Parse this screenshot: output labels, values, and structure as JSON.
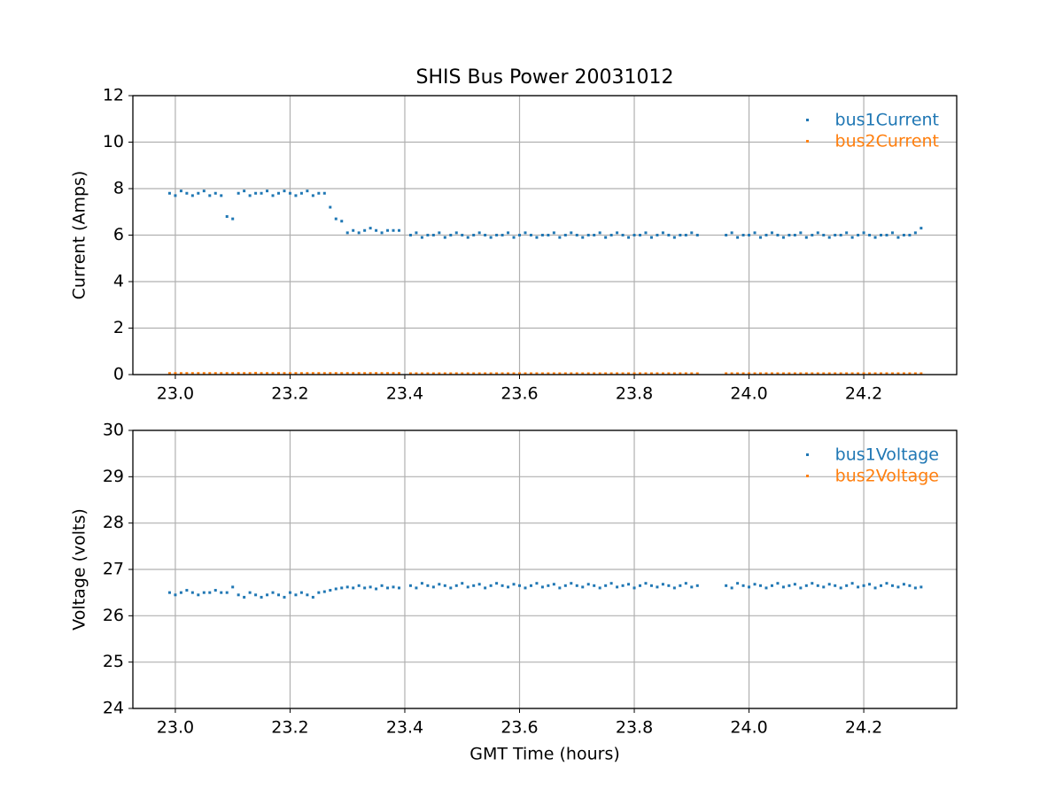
{
  "chart_data": [
    {
      "type": "scatter",
      "title": "SHIS Bus Power 20031012",
      "y_label": "Current (Amps)",
      "x": [
        22.99,
        23.0,
        23.01,
        23.02,
        23.03,
        23.04,
        23.05,
        23.06,
        23.07,
        23.08,
        23.09,
        23.1,
        23.11,
        23.12,
        23.13,
        23.14,
        23.15,
        23.16,
        23.17,
        23.18,
        23.19,
        23.2,
        23.21,
        23.22,
        23.23,
        23.24,
        23.25,
        23.26,
        23.27,
        23.28,
        23.29,
        23.3,
        23.31,
        23.32,
        23.33,
        23.34,
        23.35,
        23.36,
        23.37,
        23.38,
        23.39,
        23.41,
        23.42,
        23.43,
        23.44,
        23.45,
        23.46,
        23.47,
        23.48,
        23.49,
        23.5,
        23.51,
        23.52,
        23.53,
        23.54,
        23.55,
        23.56,
        23.57,
        23.58,
        23.59,
        23.6,
        23.61,
        23.62,
        23.63,
        23.64,
        23.65,
        23.66,
        23.67,
        23.68,
        23.69,
        23.7,
        23.71,
        23.72,
        23.73,
        23.74,
        23.75,
        23.76,
        23.77,
        23.78,
        23.79,
        23.8,
        23.81,
        23.82,
        23.83,
        23.84,
        23.85,
        23.86,
        23.87,
        23.88,
        23.89,
        23.9,
        23.91,
        23.96,
        23.97,
        23.98,
        23.99,
        24.0,
        24.01,
        24.02,
        24.03,
        24.04,
        24.05,
        24.06,
        24.07,
        24.08,
        24.09,
        24.1,
        24.11,
        24.12,
        24.13,
        24.14,
        24.15,
        24.16,
        24.17,
        24.18,
        24.19,
        24.2,
        24.21,
        24.22,
        24.23,
        24.24,
        24.25,
        24.26,
        24.27,
        24.28,
        24.29,
        24.3
      ],
      "series": [
        {
          "name": "bus1Current",
          "color": "#1f77b4",
          "values": [
            7.8,
            7.7,
            7.9,
            7.8,
            7.7,
            7.8,
            7.9,
            7.7,
            7.8,
            7.7,
            6.8,
            6.7,
            7.8,
            7.9,
            7.7,
            7.8,
            7.8,
            7.9,
            7.7,
            7.8,
            7.9,
            7.8,
            7.7,
            7.8,
            7.9,
            7.7,
            7.8,
            7.8,
            7.2,
            6.7,
            6.6,
            6.1,
            6.2,
            6.1,
            6.2,
            6.3,
            6.2,
            6.1,
            6.2,
            6.2,
            6.2,
            6.0,
            6.1,
            5.9,
            6.0,
            6.0,
            6.1,
            5.9,
            6.0,
            6.1,
            6.0,
            5.9,
            6.0,
            6.1,
            6.0,
            5.9,
            6.0,
            6.0,
            6.1,
            5.9,
            6.0,
            6.1,
            6.0,
            5.9,
            6.0,
            6.0,
            6.1,
            5.9,
            6.0,
            6.1,
            6.0,
            5.9,
            6.0,
            6.0,
            6.1,
            5.9,
            6.0,
            6.1,
            6.0,
            5.9,
            6.0,
            6.0,
            6.1,
            5.9,
            6.0,
            6.1,
            6.0,
            5.9,
            6.0,
            6.0,
            6.1,
            6.0,
            6.0,
            6.1,
            5.9,
            6.0,
            6.0,
            6.1,
            5.9,
            6.0,
            6.1,
            6.0,
            5.9,
            6.0,
            6.0,
            6.1,
            5.9,
            6.0,
            6.1,
            6.0,
            5.9,
            6.0,
            6.0,
            6.1,
            5.9,
            6.0,
            6.1,
            6.0,
            5.9,
            6.0,
            6.0,
            6.1,
            5.9,
            6.0,
            6.0,
            6.1,
            6.3
          ]
        },
        {
          "name": "bus2Current",
          "color": "#ff7f0e",
          "values": [
            0.05,
            0.05,
            0.05,
            0.05,
            0.05,
            0.05,
            0.05,
            0.05,
            0.05,
            0.05,
            0.05,
            0.05,
            0.05,
            0.05,
            0.05,
            0.06,
            0.05,
            0.05,
            0.05,
            0.05,
            0.05,
            0.05,
            0.05,
            0.05,
            0.05,
            0.05,
            0.05,
            0.05,
            0.05,
            0.05,
            0.05,
            0.05,
            0.05,
            0.05,
            0.05,
            0.05,
            0.05,
            0.05,
            0.05,
            0.05,
            0.05,
            0.04,
            0.04,
            0.04,
            0.04,
            0.04,
            0.04,
            0.04,
            0.04,
            0.04,
            0.04,
            0.04,
            0.04,
            0.04,
            0.04,
            0.04,
            0.04,
            0.04,
            0.04,
            0.04,
            0.04,
            0.04,
            0.04,
            0.04,
            0.04,
            0.04,
            0.04,
            0.04,
            0.04,
            0.04,
            0.04,
            0.04,
            0.04,
            0.04,
            0.04,
            0.04,
            0.04,
            0.04,
            0.04,
            0.04,
            0.04,
            0.04,
            0.04,
            0.04,
            0.04,
            0.04,
            0.04,
            0.04,
            0.04,
            0.04,
            0.04,
            0.04,
            0.04,
            0.04,
            0.04,
            0.04,
            0.04,
            0.04,
            0.04,
            0.04,
            0.04,
            0.04,
            0.04,
            0.04,
            0.04,
            0.04,
            0.04,
            0.04,
            0.04,
            0.04,
            0.04,
            0.04,
            0.04,
            0.04,
            0.04,
            0.04,
            0.04,
            0.04,
            0.04,
            0.04,
            0.04,
            0.04,
            0.04,
            0.04,
            0.04,
            0.04,
            0.04
          ]
        }
      ],
      "xlim": [
        22.926,
        24.362
      ],
      "xticks": [
        {
          "value": 23,
          "label": "23.0"
        },
        23.2,
        23.4,
        23.6,
        23.8,
        {
          "value": 24,
          "label": "24.0"
        },
        24.2
      ],
      "ylim": [
        0,
        12
      ],
      "yticks": [
        0,
        2,
        4,
        6,
        8,
        10,
        12
      ],
      "grid": true,
      "legend": "upper right"
    },
    {
      "type": "scatter",
      "x_label": "GMT Time (hours)",
      "y_label": "Voltage (volts)",
      "x": [
        22.99,
        23.0,
        23.01,
        23.02,
        23.03,
        23.04,
        23.05,
        23.06,
        23.07,
        23.08,
        23.09,
        23.1,
        23.11,
        23.12,
        23.13,
        23.14,
        23.15,
        23.16,
        23.17,
        23.18,
        23.19,
        23.2,
        23.21,
        23.22,
        23.23,
        23.24,
        23.25,
        23.26,
        23.27,
        23.28,
        23.29,
        23.3,
        23.31,
        23.32,
        23.33,
        23.34,
        23.35,
        23.36,
        23.37,
        23.38,
        23.39,
        23.41,
        23.42,
        23.43,
        23.44,
        23.45,
        23.46,
        23.47,
        23.48,
        23.49,
        23.5,
        23.51,
        23.52,
        23.53,
        23.54,
        23.55,
        23.56,
        23.57,
        23.58,
        23.59,
        23.6,
        23.61,
        23.62,
        23.63,
        23.64,
        23.65,
        23.66,
        23.67,
        23.68,
        23.69,
        23.7,
        23.71,
        23.72,
        23.73,
        23.74,
        23.75,
        23.76,
        23.77,
        23.78,
        23.79,
        23.8,
        23.81,
        23.82,
        23.83,
        23.84,
        23.85,
        23.86,
        23.87,
        23.88,
        23.89,
        23.9,
        23.91,
        23.96,
        23.97,
        23.98,
        23.99,
        24.0,
        24.01,
        24.02,
        24.03,
        24.04,
        24.05,
        24.06,
        24.07,
        24.08,
        24.09,
        24.1,
        24.11,
        24.12,
        24.13,
        24.14,
        24.15,
        24.16,
        24.17,
        24.18,
        24.19,
        24.2,
        24.21,
        24.22,
        24.23,
        24.24,
        24.25,
        24.26,
        24.27,
        24.28,
        24.29,
        24.3
      ],
      "series": [
        {
          "name": "bus1Voltage",
          "color": "#1f77b4",
          "values": [
            26.5,
            26.45,
            26.5,
            26.55,
            26.5,
            26.45,
            26.5,
            26.5,
            26.55,
            26.5,
            26.5,
            26.62,
            26.45,
            26.4,
            26.5,
            26.45,
            26.4,
            26.45,
            26.5,
            26.45,
            26.4,
            26.5,
            26.45,
            26.5,
            26.45,
            26.4,
            26.5,
            26.52,
            26.55,
            26.58,
            26.6,
            26.62,
            26.6,
            26.65,
            26.6,
            26.62,
            26.58,
            26.65,
            26.6,
            26.62,
            26.6,
            26.65,
            26.6,
            26.7,
            26.65,
            26.62,
            26.68,
            26.65,
            26.6,
            26.65,
            26.7,
            26.62,
            26.65,
            26.68,
            26.6,
            26.65,
            26.7,
            26.65,
            26.62,
            26.68,
            26.65,
            26.6,
            26.65,
            26.7,
            26.62,
            26.65,
            26.68,
            26.6,
            26.65,
            26.7,
            26.65,
            26.62,
            26.68,
            26.65,
            26.6,
            26.65,
            26.7,
            26.62,
            26.65,
            26.68,
            26.6,
            26.65,
            26.7,
            26.65,
            26.62,
            26.68,
            26.65,
            26.6,
            26.65,
            26.7,
            26.62,
            26.65,
            26.65,
            26.6,
            26.7,
            26.65,
            26.62,
            26.68,
            26.65,
            26.6,
            26.65,
            26.7,
            26.62,
            26.65,
            26.68,
            26.6,
            26.65,
            26.7,
            26.65,
            26.62,
            26.68,
            26.65,
            26.6,
            26.65,
            26.7,
            26.62,
            26.65,
            26.68,
            26.6,
            26.65,
            26.7,
            26.65,
            26.62,
            26.68,
            26.65,
            26.6,
            26.62
          ]
        },
        {
          "name": "bus2Voltage",
          "color": "#ff7f0e",
          "values": [
            null,
            null,
            null,
            null,
            null,
            null,
            null,
            null,
            null,
            null,
            null,
            null,
            null,
            null,
            null,
            null,
            null,
            null,
            null,
            null,
            null,
            null,
            null,
            null,
            null,
            null,
            null,
            null,
            null,
            null,
            null,
            null,
            null,
            null,
            null,
            null,
            null,
            null,
            null,
            null,
            null,
            null,
            null,
            null,
            null,
            null,
            null,
            null,
            null,
            null,
            null,
            null,
            null,
            null,
            null,
            null,
            null,
            null,
            null,
            null,
            null,
            null,
            null,
            null,
            null,
            null,
            null,
            null,
            null,
            null,
            null,
            null,
            null,
            null,
            null,
            null,
            null,
            null,
            null,
            null,
            null,
            null,
            null,
            null,
            null,
            null,
            null,
            null,
            null,
            null,
            null,
            null,
            null,
            null,
            null,
            null,
            null,
            null,
            null,
            null,
            null,
            null,
            null,
            null,
            null,
            null,
            null,
            null,
            null,
            null,
            null,
            null,
            null,
            null,
            null,
            null,
            null,
            null,
            null,
            null,
            null,
            null,
            null,
            null,
            null,
            null,
            null
          ]
        }
      ],
      "xlim": [
        22.926,
        24.362
      ],
      "xticks": [
        {
          "value": 23,
          "label": "23.0"
        },
        23.2,
        23.4,
        23.6,
        23.8,
        {
          "value": 24,
          "label": "24.0"
        },
        24.2
      ],
      "ylim": [
        24,
        30
      ],
      "yticks": [
        24,
        25,
        26,
        27,
        28,
        29,
        30
      ],
      "grid": true,
      "legend": "upper right"
    }
  ]
}
